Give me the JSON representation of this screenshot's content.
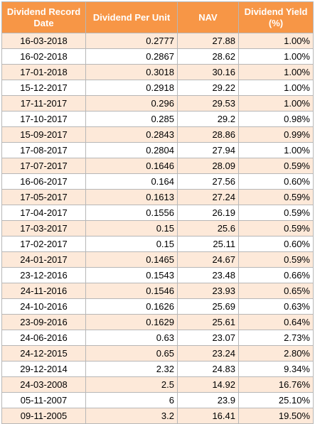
{
  "table": {
    "headers": [
      "Dividend Record Date",
      "Dividend Per Unit",
      "NAV",
      "Dividend Yield (%)"
    ],
    "rows": [
      [
        "16-03-2018",
        "0.2777",
        "27.88",
        "1.00%"
      ],
      [
        "16-02-2018",
        "0.2867",
        "28.62",
        "1.00%"
      ],
      [
        "17-01-2018",
        "0.3018",
        "30.16",
        "1.00%"
      ],
      [
        "15-12-2017",
        "0.2918",
        "29.22",
        "1.00%"
      ],
      [
        "17-11-2017",
        "0.296",
        "29.53",
        "1.00%"
      ],
      [
        "17-10-2017",
        "0.285",
        "29.2",
        "0.98%"
      ],
      [
        "15-09-2017",
        "0.2843",
        "28.86",
        "0.99%"
      ],
      [
        "17-08-2017",
        "0.2804",
        "27.94",
        "1.00%"
      ],
      [
        "17-07-2017",
        "0.1646",
        "28.09",
        "0.59%"
      ],
      [
        "16-06-2017",
        "0.164",
        "27.56",
        "0.60%"
      ],
      [
        "17-05-2017",
        "0.1613",
        "27.24",
        "0.59%"
      ],
      [
        "17-04-2017",
        "0.1556",
        "26.19",
        "0.59%"
      ],
      [
        "17-03-2017",
        "0.15",
        "25.6",
        "0.59%"
      ],
      [
        "17-02-2017",
        "0.15",
        "25.11",
        "0.60%"
      ],
      [
        "24-01-2017",
        "0.1465",
        "24.67",
        "0.59%"
      ],
      [
        "23-12-2016",
        "0.1543",
        "23.48",
        "0.66%"
      ],
      [
        "24-11-2016",
        "0.1546",
        "23.93",
        "0.65%"
      ],
      [
        "24-10-2016",
        "0.1626",
        "25.69",
        "0.63%"
      ],
      [
        "23-09-2016",
        "0.1629",
        "25.61",
        "0.64%"
      ],
      [
        "24-06-2016",
        "0.63",
        "23.07",
        "2.73%"
      ],
      [
        "24-12-2015",
        "0.65",
        "23.24",
        "2.80%"
      ],
      [
        "29-12-2014",
        "2.32",
        "24.83",
        "9.34%"
      ],
      [
        "24-03-2008",
        "2.5",
        "14.92",
        "16.76%"
      ],
      [
        "05-11-2007",
        "6",
        "23.9",
        "25.10%"
      ],
      [
        "09-11-2005",
        "3.2",
        "16.41",
        "19.50%"
      ]
    ]
  },
  "colors": {
    "header_bg": "#F79646",
    "header_text": "#FFFFFF",
    "band_row_bg": "#FDE9D9",
    "plain_row_bg": "#FFFFFF",
    "grid_line": "#B7B7B7"
  }
}
